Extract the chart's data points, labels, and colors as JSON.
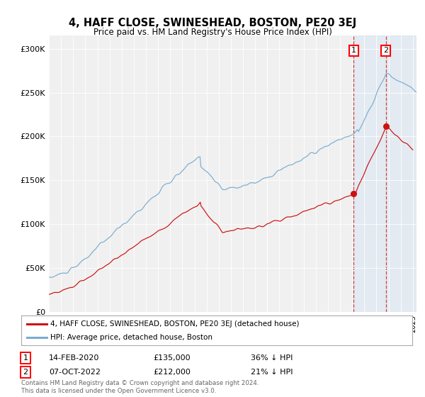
{
  "title": "4, HAFF CLOSE, SWINESHEAD, BOSTON, PE20 3EJ",
  "subtitle": "Price paid vs. HM Land Registry's House Price Index (HPI)",
  "ylabel_ticks": [
    "£0",
    "£50K",
    "£100K",
    "£150K",
    "£200K",
    "£250K",
    "£300K"
  ],
  "ytick_vals": [
    0,
    50000,
    100000,
    150000,
    200000,
    250000,
    300000
  ],
  "ylim": [
    0,
    315000
  ],
  "xlim_start": 1995.0,
  "xlim_end": 2025.3,
  "hpi_color": "#7aadcf",
  "price_color": "#cc1111",
  "sale1_date_label": "14-FEB-2020",
  "sale1_price_label": "£135,000",
  "sale1_pct_label": "36% ↓ HPI",
  "sale1_x": 2020.12,
  "sale1_price": 135000,
  "sale2_date_label": "07-OCT-2022",
  "sale2_price_label": "£212,000",
  "sale2_pct_label": "21% ↓ HPI",
  "sale2_x": 2022.77,
  "sale2_price": 212000,
  "legend_label1": "4, HAFF CLOSE, SWINESHEAD, BOSTON, PE20 3EJ (detached house)",
  "legend_label2": "HPI: Average price, detached house, Boston",
  "footnote": "Contains HM Land Registry data © Crown copyright and database right 2024.\nThis data is licensed under the Open Government Licence v3.0.",
  "background_color": "#ffffff",
  "plot_bg_color": "#f0f0f0",
  "shade_color": "#cce0f5"
}
